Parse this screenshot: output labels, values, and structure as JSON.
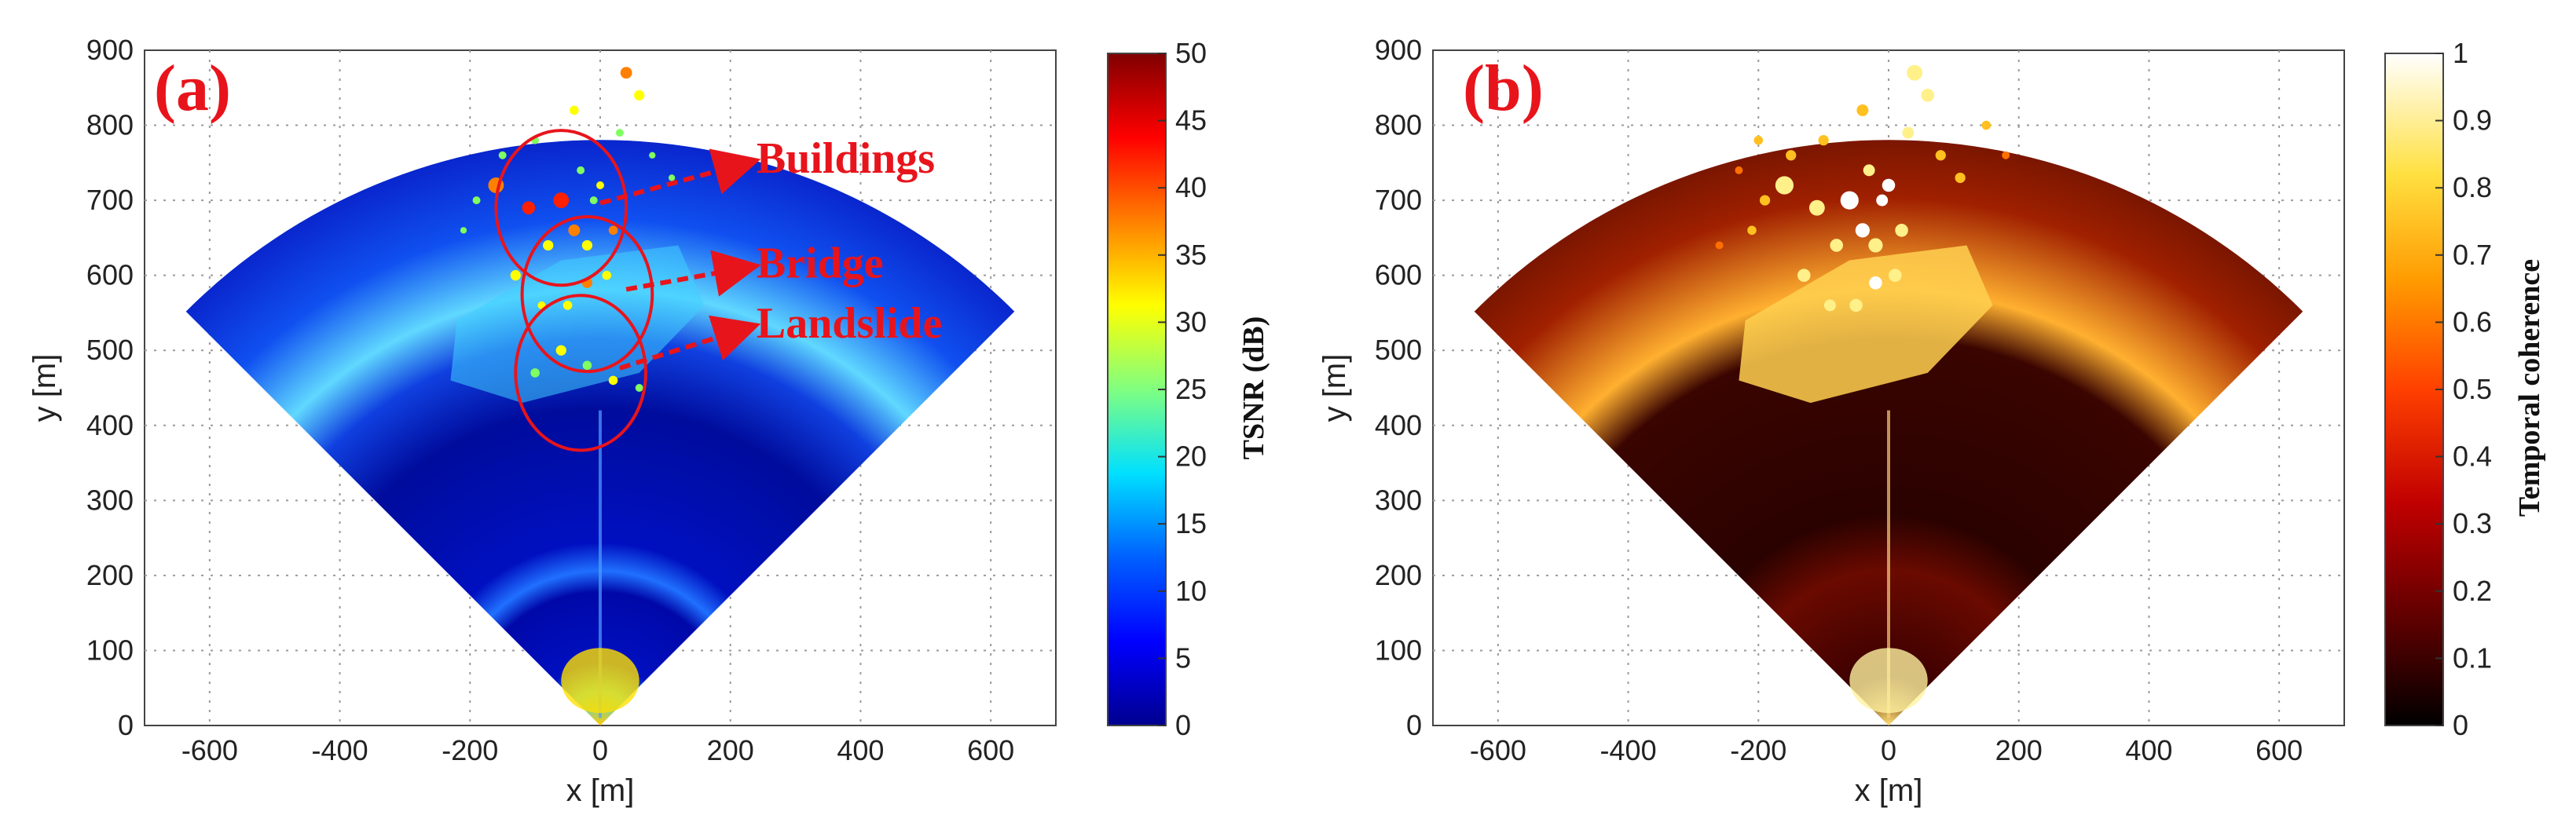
{
  "chart_data": [
    {
      "type": "heatmap",
      "panel_label": "(a)",
      "xlabel": "x [m]",
      "ylabel": "y [m]",
      "xlim": [
        -700,
        700
      ],
      "ylim": [
        0,
        900
      ],
      "xticks": [
        -600,
        -400,
        -200,
        0,
        200,
        400,
        600
      ],
      "yticks": [
        0,
        100,
        200,
        300,
        400,
        500,
        600,
        700,
        800,
        900
      ],
      "colorbar": {
        "label": "TSNR (dB)",
        "min": 0,
        "max": 50,
        "ticks": [
          0,
          5,
          10,
          15,
          20,
          25,
          30,
          35,
          40,
          45,
          50
        ],
        "colormap": "jet",
        "colors": [
          "#00008f",
          "#0000ff",
          "#0080ff",
          "#00ffff",
          "#80ff80",
          "#ffff00",
          "#ff8000",
          "#ff0000",
          "#800000"
        ]
      },
      "annotations": [
        {
          "text": "Buildings",
          "x": 240,
          "y": 760,
          "target": [
            -60,
            690
          ]
        },
        {
          "text": "Bridge",
          "x": 240,
          "y": 620,
          "target": [
            -20,
            575
          ]
        },
        {
          "text": "Landslide",
          "x": 240,
          "y": 540,
          "target": [
            -30,
            470
          ]
        }
      ]
    },
    {
      "type": "heatmap",
      "panel_label": "(b)",
      "xlabel": "x [m]",
      "ylabel": "y [m]",
      "xlim": [
        -700,
        700
      ],
      "ylim": [
        0,
        900
      ],
      "xticks": [
        -600,
        -400,
        -200,
        0,
        200,
        400,
        600
      ],
      "yticks": [
        0,
        100,
        200,
        300,
        400,
        500,
        600,
        700,
        800,
        900
      ],
      "colorbar": {
        "label": "Temporal coherence",
        "min": 0,
        "max": 1,
        "ticks": [
          0,
          0.1,
          0.2,
          0.3,
          0.4,
          0.5,
          0.6,
          0.7,
          0.8,
          0.9,
          1
        ],
        "colormap": "hot",
        "colors": [
          "#000000",
          "#3a0000",
          "#8a0000",
          "#d01000",
          "#ff5a00",
          "#ffa000",
          "#ffe040",
          "#ffffa0",
          "#ffffff"
        ]
      },
      "annotations": []
    }
  ]
}
